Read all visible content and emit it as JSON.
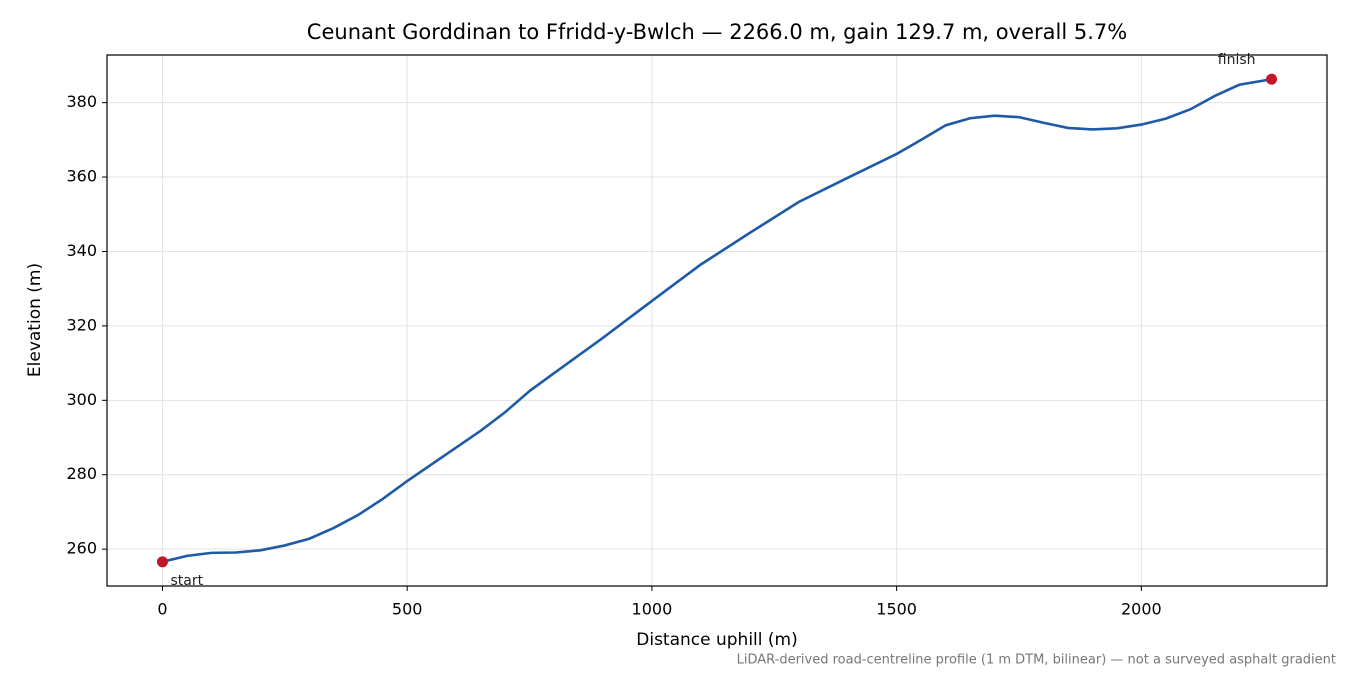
{
  "chart_data": {
    "type": "line",
    "title": "Ceunant Gorddinan to Ffridd-y-Bwlch — 2266.0 m, gain 129.7 m, overall 5.7%",
    "xlabel": "Distance uphill (m)",
    "ylabel": "Elevation (m)",
    "footnote": "LiDAR-derived road-centreline profile (1 m DTM, bilinear) — not a surveyed asphalt gradient",
    "x": [
      0,
      50,
      100,
      150,
      200,
      250,
      300,
      350,
      400,
      450,
      500,
      600,
      650,
      700,
      750,
      800,
      900,
      1000,
      1100,
      1200,
      1300,
      1400,
      1500,
      1550,
      1600,
      1650,
      1700,
      1750,
      1800,
      1850,
      1900,
      1950,
      2000,
      2050,
      2100,
      2150,
      2200,
      2266
    ],
    "series": [
      {
        "color": "#1f5aa6",
        "values": [
          256.6,
          258.2,
          259.0,
          259.1,
          259.7,
          261.0,
          262.8,
          265.7,
          269.2,
          273.5,
          278.3,
          287.3,
          291.8,
          296.8,
          302.5,
          307.3,
          316.8,
          326.7,
          336.5,
          345.0,
          353.3,
          359.8,
          366.2,
          370.0,
          373.9,
          375.8,
          376.5,
          376.1,
          374.6,
          373.2,
          372.8,
          373.1,
          374.1,
          375.7,
          378.2,
          381.8,
          384.8,
          386.3
        ]
      }
    ],
    "annotations": [
      {
        "text": "start",
        "x": 0,
        "y": 256.6
      },
      {
        "text": "finish",
        "x": 2266,
        "y": 386.3
      }
    ],
    "annotation_color": "#c0182a",
    "xlim": [
      -113.3,
      2379.3
    ],
    "ylim": [
      250.1,
      392.8
    ],
    "xticks": [
      0,
      500,
      1000,
      1500,
      2000
    ],
    "yticks": [
      260,
      280,
      300,
      320,
      340,
      360,
      380
    ],
    "grid": true
  }
}
